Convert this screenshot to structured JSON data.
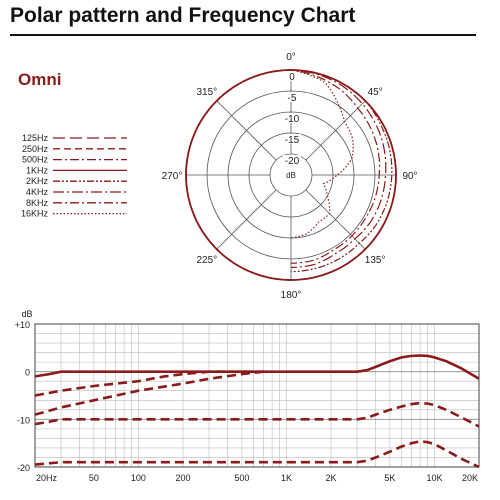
{
  "page": {
    "title": "Polar pattern and Frequency Chart",
    "pattern_name": "Omni",
    "colors": {
      "curve": "#8b1a1a",
      "grid": "#555555",
      "fine_grid": "#bbbbbb",
      "rule": "#111111"
    }
  },
  "chart_data": [
    {
      "type": "polar",
      "angle_labels": [
        "0°",
        "45°",
        "90°",
        "135°",
        "180°",
        "225°",
        "270°",
        "315°"
      ],
      "ring_labels": [
        "0",
        "-5",
        "-10",
        "-15",
        "-20"
      ],
      "center_label": "dB",
      "r_range_db": [
        -25,
        0
      ],
      "symmetric_left_half_at_0db": true,
      "legend_position": "left",
      "series": [
        {
          "name": "125Hz",
          "dash": "long-dash",
          "right_half_db": [
            [
              0,
              0
            ],
            [
              30,
              0
            ],
            [
              45,
              0
            ],
            [
              60,
              0
            ],
            [
              90,
              0
            ],
            [
              120,
              0
            ],
            [
              135,
              0
            ],
            [
              150,
              0
            ],
            [
              165,
              0
            ],
            [
              180,
              0
            ]
          ]
        },
        {
          "name": "250Hz",
          "dash": "dash",
          "right_half_db": [
            [
              0,
              0
            ],
            [
              30,
              0
            ],
            [
              45,
              0
            ],
            [
              60,
              0
            ],
            [
              90,
              0
            ],
            [
              120,
              0
            ],
            [
              135,
              0
            ],
            [
              150,
              0
            ],
            [
              165,
              0
            ],
            [
              180,
              0
            ]
          ]
        },
        {
          "name": "500Hz",
          "dash": "dash-dot",
          "right_half_db": [
            [
              0,
              0
            ],
            [
              30,
              0
            ],
            [
              45,
              0
            ],
            [
              60,
              0
            ],
            [
              90,
              0
            ],
            [
              120,
              0
            ],
            [
              135,
              0
            ],
            [
              150,
              0
            ],
            [
              165,
              0
            ],
            [
              180,
              0
            ]
          ]
        },
        {
          "name": "1KHz",
          "dash": "solid",
          "right_half_db": [
            [
              0,
              0
            ],
            [
              30,
              0
            ],
            [
              45,
              0
            ],
            [
              60,
              0
            ],
            [
              90,
              0
            ],
            [
              120,
              0
            ],
            [
              135,
              0
            ],
            [
              150,
              0
            ],
            [
              165,
              0
            ],
            [
              180,
              0
            ]
          ]
        },
        {
          "name": "2KHz",
          "dash": "dash-dot-dot",
          "right_half_db": [
            [
              0,
              0
            ],
            [
              30,
              0
            ],
            [
              45,
              0
            ],
            [
              60,
              -0.5
            ],
            [
              90,
              -1
            ],
            [
              120,
              -1.5
            ],
            [
              135,
              -2
            ],
            [
              150,
              -2
            ],
            [
              165,
              -2
            ],
            [
              180,
              -2
            ]
          ]
        },
        {
          "name": "4KHz",
          "dash": "long-dash-dot",
          "right_half_db": [
            [
              0,
              0
            ],
            [
              30,
              -0.5
            ],
            [
              45,
              -1
            ],
            [
              60,
              -1.5
            ],
            [
              90,
              -2.5
            ],
            [
              120,
              -3
            ],
            [
              135,
              -3.5
            ],
            [
              150,
              -3.5
            ],
            [
              165,
              -3
            ],
            [
              180,
              -3
            ]
          ]
        },
        {
          "name": "8KHz",
          "dash": "dash-dot",
          "right_half_db": [
            [
              0,
              0
            ],
            [
              30,
              -1.5
            ],
            [
              45,
              -2.5
            ],
            [
              60,
              -3
            ],
            [
              90,
              -4
            ],
            [
              120,
              -4.5
            ],
            [
              135,
              -4.5
            ],
            [
              150,
              -4.5
            ],
            [
              165,
              -4
            ],
            [
              180,
              -4
            ]
          ]
        },
        {
          "name": "16KHz",
          "dash": "dotted",
          "right_half_db": [
            [
              0,
              0
            ],
            [
              20,
              -1.5
            ],
            [
              35,
              -5
            ],
            [
              45,
              -7
            ],
            [
              60,
              -8
            ],
            [
              75,
              -10
            ],
            [
              90,
              -14
            ],
            [
              105,
              -17
            ],
            [
              120,
              -15
            ],
            [
              135,
              -12
            ],
            [
              150,
              -12
            ],
            [
              165,
              -10.5
            ],
            [
              180,
              -10
            ]
          ]
        }
      ]
    },
    {
      "type": "line",
      "ylabel": "dB",
      "x_scale": "log",
      "xlim": [
        20,
        20000
      ],
      "ylim": [
        -20,
        10
      ],
      "x_ticks": [
        {
          "label": "20Hz",
          "value": 20
        },
        {
          "label": "50",
          "value": 50
        },
        {
          "label": "100",
          "value": 100
        },
        {
          "label": "200",
          "value": 200
        },
        {
          "label": "500",
          "value": 500
        },
        {
          "label": "1K",
          "value": 1000
        },
        {
          "label": "2K",
          "value": 2000
        },
        {
          "label": "5K",
          "value": 5000
        },
        {
          "label": "10K",
          "value": 10000
        },
        {
          "label": "20K",
          "value": 20000
        }
      ],
      "y_ticks": [
        {
          "label": "+10",
          "value": 10
        },
        {
          "label": "0",
          "value": 0
        },
        {
          "label": "-10",
          "value": -10
        },
        {
          "label": "-20",
          "value": -20
        }
      ],
      "grid": true,
      "series": [
        {
          "style": "solid",
          "points": [
            [
              20,
              -1
            ],
            [
              25,
              -0.5
            ],
            [
              30,
              0
            ],
            [
              50,
              0
            ],
            [
              100,
              0
            ],
            [
              200,
              0
            ],
            [
              500,
              0
            ],
            [
              1000,
              0
            ],
            [
              2000,
              0
            ],
            [
              3000,
              0
            ],
            [
              3500,
              0.3
            ],
            [
              4000,
              1
            ],
            [
              5000,
              2.2
            ],
            [
              6000,
              3
            ],
            [
              7000,
              3.3
            ],
            [
              8000,
              3.4
            ],
            [
              9000,
              3.3
            ],
            [
              10000,
              3
            ],
            [
              12000,
              2.2
            ],
            [
              15000,
              0.8
            ],
            [
              20000,
              -1.5
            ]
          ]
        },
        {
          "style": "dashed",
          "points": [
            [
              20,
              -5
            ],
            [
              30,
              -4
            ],
            [
              50,
              -3
            ],
            [
              100,
              -2
            ],
            [
              150,
              -1
            ],
            [
              200,
              -0.5
            ],
            [
              300,
              0
            ],
            [
              500,
              0
            ],
            [
              700,
              0
            ]
          ]
        },
        {
          "style": "dashed",
          "points": [
            [
              20,
              -9
            ],
            [
              30,
              -7.5
            ],
            [
              50,
              -6
            ],
            [
              100,
              -4
            ],
            [
              200,
              -2.5
            ],
            [
              300,
              -1.5
            ],
            [
              500,
              -0.5
            ],
            [
              700,
              0
            ]
          ]
        },
        {
          "style": "dashed",
          "points": [
            [
              20,
              -11
            ],
            [
              25,
              -10.5
            ],
            [
              30,
              -10
            ],
            [
              50,
              -10
            ],
            [
              100,
              -10
            ],
            [
              200,
              -10
            ],
            [
              500,
              -10
            ],
            [
              1000,
              -10
            ],
            [
              2000,
              -10
            ],
            [
              3000,
              -10
            ],
            [
              3500,
              -9.7
            ],
            [
              4000,
              -9
            ],
            [
              5000,
              -8
            ],
            [
              6000,
              -7.3
            ],
            [
              7000,
              -6.8
            ],
            [
              8000,
              -6.6
            ],
            [
              9000,
              -6.7
            ],
            [
              10000,
              -7
            ],
            [
              12000,
              -8
            ],
            [
              15000,
              -9.5
            ],
            [
              20000,
              -11.5
            ]
          ]
        },
        {
          "style": "dashed",
          "points": [
            [
              20,
              -19.5
            ],
            [
              30,
              -19
            ],
            [
              50,
              -19
            ],
            [
              100,
              -19
            ],
            [
              200,
              -19
            ],
            [
              500,
              -19
            ],
            [
              1000,
              -19
            ],
            [
              2000,
              -19
            ],
            [
              3000,
              -19
            ],
            [
              3500,
              -18.7
            ],
            [
              4000,
              -18
            ],
            [
              5000,
              -16.8
            ],
            [
              6000,
              -15.7
            ],
            [
              7000,
              -15
            ],
            [
              8000,
              -14.6
            ],
            [
              9000,
              -14.8
            ],
            [
              10000,
              -15.2
            ],
            [
              12000,
              -16.5
            ],
            [
              15000,
              -18.2
            ],
            [
              20000,
              -20
            ]
          ]
        }
      ]
    }
  ]
}
